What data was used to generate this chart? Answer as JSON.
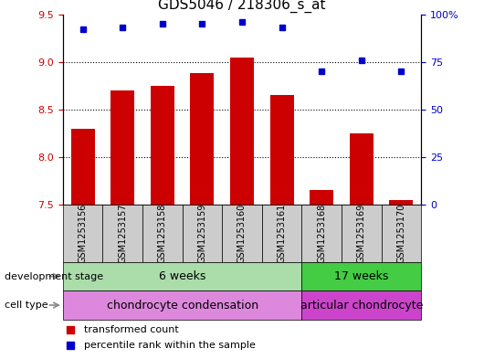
{
  "title": "GDS5046 / 218306_s_at",
  "samples": [
    "GSM1253156",
    "GSM1253157",
    "GSM1253158",
    "GSM1253159",
    "GSM1253160",
    "GSM1253161",
    "GSM1253168",
    "GSM1253169",
    "GSM1253170"
  ],
  "transformed_count": [
    8.3,
    8.7,
    8.75,
    8.88,
    9.05,
    8.65,
    7.65,
    8.25,
    7.55
  ],
  "percentile_rank": [
    92,
    93,
    95,
    95,
    96,
    93,
    70,
    76,
    70
  ],
  "ylim_left": [
    7.5,
    9.5
  ],
  "ylim_right": [
    0,
    100
  ],
  "yticks_left": [
    7.5,
    8.0,
    8.5,
    9.0,
    9.5
  ],
  "yticks_right_vals": [
    0,
    25,
    50,
    75,
    100
  ],
  "yticks_right_labels": [
    "0",
    "25",
    "50",
    "75",
    "100%"
  ],
  "bar_color": "#cc0000",
  "dot_color": "#0000cc",
  "bar_bottom": 7.5,
  "groups_dev": [
    {
      "label": "6 weeks",
      "start": 0,
      "end": 6,
      "color": "#aaddaa"
    },
    {
      "label": "17 weeks",
      "start": 6,
      "end": 9,
      "color": "#44cc44"
    }
  ],
  "groups_cell": [
    {
      "label": "chondrocyte condensation",
      "start": 0,
      "end": 6,
      "color": "#dd88dd"
    },
    {
      "label": "articular chondrocyte",
      "start": 6,
      "end": 9,
      "color": "#cc44cc"
    }
  ],
  "legend_items": [
    {
      "label": "transformed count",
      "color": "#cc0000"
    },
    {
      "label": "percentile rank within the sample",
      "color": "#0000cc"
    }
  ],
  "left_tick_color": "#cc0000",
  "right_tick_color": "#0000cc",
  "title_fontsize": 11,
  "tick_fontsize": 8,
  "sample_fontsize": 7,
  "group_fontsize": 9,
  "legend_fontsize": 8,
  "side_label_fontsize": 8
}
